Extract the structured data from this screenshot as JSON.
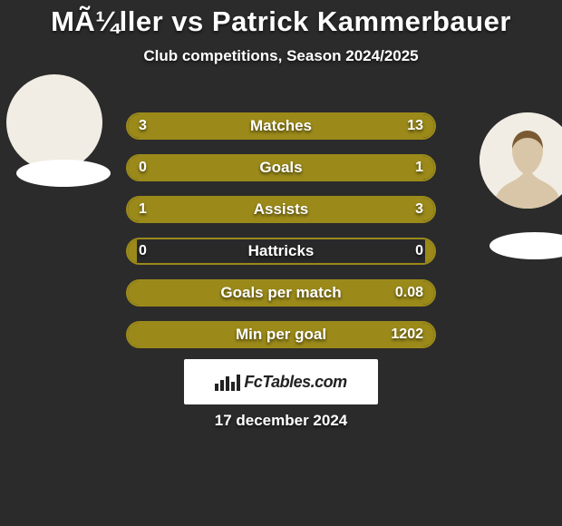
{
  "colors": {
    "background": "#2b2b2b",
    "text": "#ffffff",
    "bar_track": "#292929",
    "bar_border": "#9b8a1a",
    "bar_fill": "#9b8a1a",
    "brand_bg": "#ffffff",
    "brand_text": "#222222",
    "avatar_bg": "#f1ede4",
    "club_badge_bg": "#ffffff"
  },
  "title": {
    "text": "MÃ¼ller vs Patrick Kammerbauer",
    "fontsize": 31
  },
  "subtitle": {
    "text": "Club competitions, Season 2024/2025",
    "fontsize": 17
  },
  "bars": {
    "label_fontsize": 17,
    "value_fontsize": 16,
    "items": [
      {
        "label": "Matches",
        "left_val": "3",
        "right_val": "13",
        "left_pct": 18.75,
        "right_pct": 81.25
      },
      {
        "label": "Goals",
        "left_val": "0",
        "right_val": "1",
        "left_pct": 3,
        "right_pct": 97
      },
      {
        "label": "Assists",
        "left_val": "1",
        "right_val": "3",
        "left_pct": 25,
        "right_pct": 75
      },
      {
        "label": "Hattricks",
        "left_val": "0",
        "right_val": "0",
        "left_pct": 3,
        "right_pct": 3
      },
      {
        "label": "Goals per match",
        "left_val": "",
        "right_val": "0.08",
        "left_pct": 3,
        "right_pct": 97
      },
      {
        "label": "Min per goal",
        "left_val": "",
        "right_val": "1202",
        "left_pct": 3,
        "right_pct": 97
      }
    ]
  },
  "brand": {
    "text": "FcTables.com",
    "fontsize": 18
  },
  "date": {
    "text": "17 december 2024",
    "fontsize": 17
  }
}
